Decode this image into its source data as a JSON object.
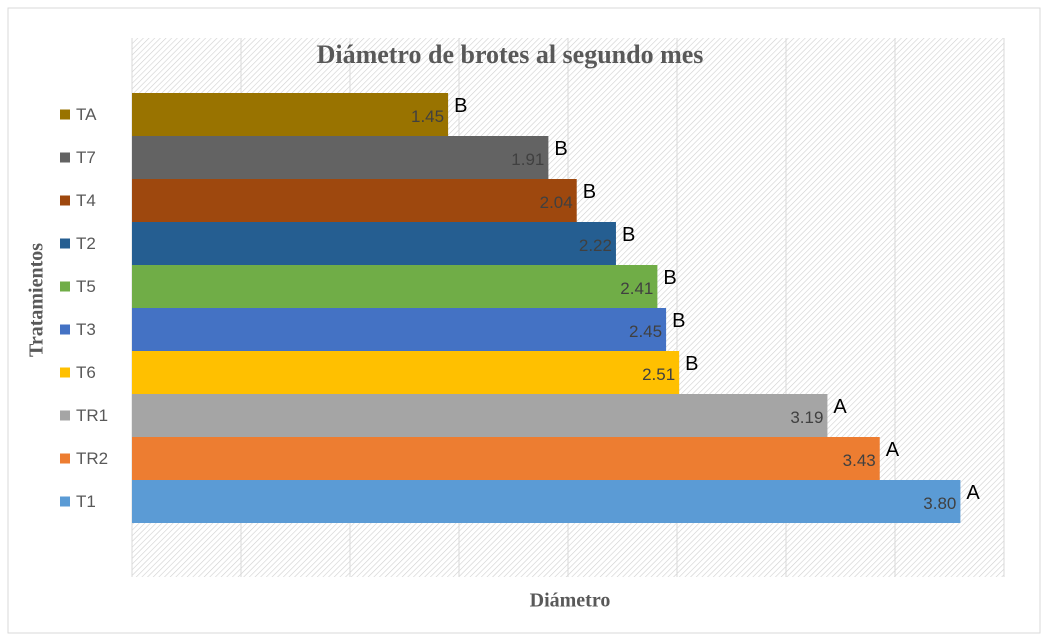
{
  "chart_data": {
    "type": "barh",
    "title": "Diámetro de brotes al segundo mes",
    "xlabel": "Diámetro",
    "ylabel": "Tratamientos",
    "categories": [
      "TA",
      "T7",
      "T4",
      "T2",
      "T5",
      "T3",
      "T6",
      "TR1",
      "TR2",
      "T1"
    ],
    "values": [
      1.45,
      1.91,
      2.04,
      2.22,
      2.41,
      2.45,
      2.51,
      3.19,
      3.43,
      3.8
    ],
    "value_labels": [
      "1.45",
      "1.91",
      "2.04",
      "2.22",
      "2.41",
      "2.45",
      "2.51",
      "3.19",
      "3.43",
      "3.80"
    ],
    "annotations": [
      "B",
      "B",
      "B",
      "B",
      "B",
      "B",
      "B",
      "A",
      "A",
      "A"
    ],
    "colors": [
      "#997300",
      "#636363",
      "#9e480e",
      "#255e91",
      "#70ad47",
      "#4472c4",
      "#ffc000",
      "#a5a5a5",
      "#ed7d31",
      "#5b9bd5"
    ],
    "xlim": [
      0,
      4
    ],
    "xticks": [
      0,
      0.5,
      1,
      1.5,
      2,
      2.5,
      3,
      3.5,
      4
    ],
    "grid": true
  }
}
